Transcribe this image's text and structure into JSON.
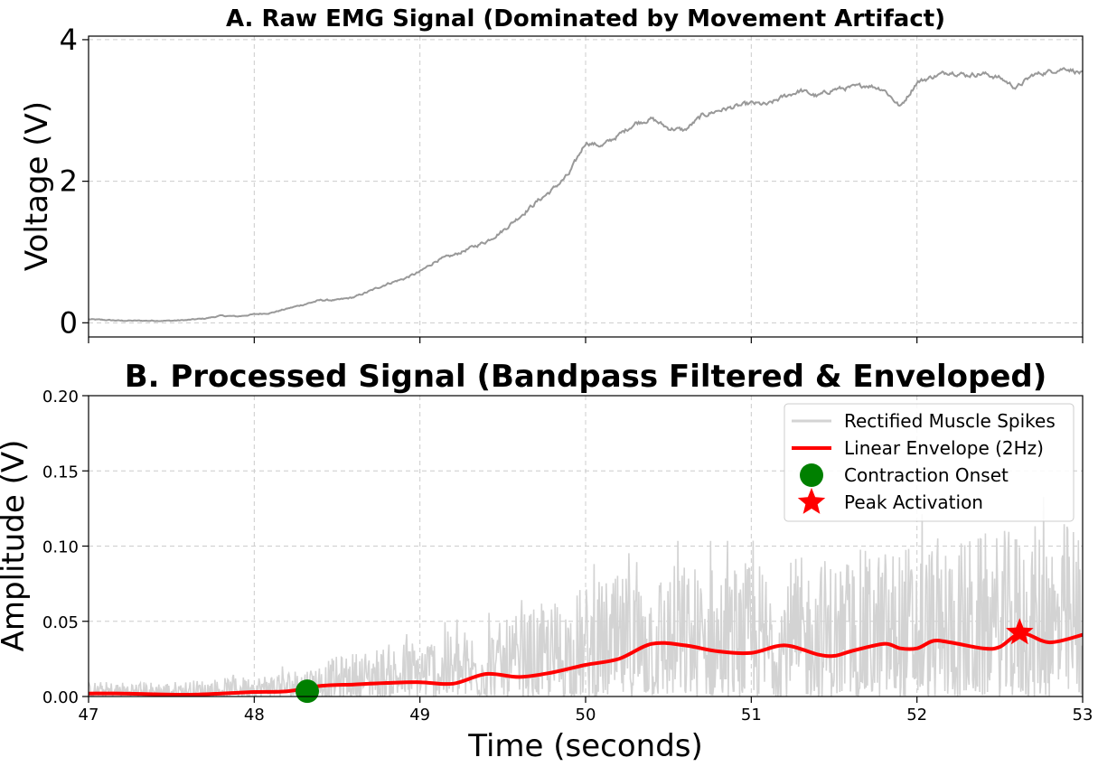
{
  "chart_data": [
    {
      "type": "line",
      "title": "A. Raw EMG Signal (Dominated by Movement Artifact)",
      "xlabel": "",
      "ylabel": "Voltage (V)",
      "xlim": [
        47,
        53
      ],
      "ylim": [
        -0.2,
        4.05
      ],
      "yticks": [
        0,
        2,
        4
      ],
      "ytick_labels": [
        "0",
        "2",
        "4"
      ],
      "xticks": [
        47,
        48,
        49,
        50,
        51,
        52,
        53
      ],
      "xtick_labels_visible": false,
      "grid": true,
      "series": [
        {
          "color": "#999999",
          "x": [
            47.0,
            47.1,
            47.2,
            47.3,
            47.4,
            47.5,
            47.6,
            47.7,
            47.8,
            47.9,
            48.0,
            48.1,
            48.2,
            48.3,
            48.4,
            48.5,
            48.6,
            48.7,
            48.8,
            48.9,
            49.0,
            49.1,
            49.2,
            49.3,
            49.4,
            49.5,
            49.6,
            49.7,
            49.8,
            49.9,
            50.0,
            50.1,
            50.2,
            50.3,
            50.4,
            50.5,
            50.6,
            50.7,
            50.8,
            50.9,
            51.0,
            51.1,
            51.2,
            51.3,
            51.4,
            51.5,
            51.6,
            51.7,
            51.8,
            51.9,
            52.0,
            52.1,
            52.2,
            52.3,
            52.4,
            52.5,
            52.6,
            52.7,
            52.8,
            52.9,
            53.0
          ],
          "y": [
            0.05,
            0.04,
            0.03,
            0.03,
            0.03,
            0.03,
            0.04,
            0.06,
            0.1,
            0.09,
            0.12,
            0.14,
            0.2,
            0.26,
            0.32,
            0.32,
            0.36,
            0.45,
            0.55,
            0.62,
            0.72,
            0.88,
            0.95,
            1.05,
            1.15,
            1.3,
            1.5,
            1.7,
            1.88,
            2.1,
            2.55,
            2.5,
            2.65,
            2.82,
            2.88,
            2.75,
            2.72,
            2.92,
            3.0,
            3.05,
            3.1,
            3.08,
            3.2,
            3.28,
            3.2,
            3.3,
            3.32,
            3.36,
            3.3,
            3.05,
            3.4,
            3.48,
            3.55,
            3.5,
            3.52,
            3.46,
            3.32,
            3.5,
            3.55,
            3.6,
            3.52
          ]
        }
      ]
    },
    {
      "type": "line",
      "title": "B. Processed Signal (Bandpass Filtered & Enveloped)",
      "xlabel": "Time (seconds)",
      "ylabel": "Amplitude (V)",
      "xlim": [
        47,
        53
      ],
      "ylim": [
        0,
        0.2
      ],
      "xticks": [
        47,
        48,
        49,
        50,
        51,
        52,
        53
      ],
      "xtick_labels": [
        "47",
        "48",
        "49",
        "50",
        "51",
        "52",
        "53"
      ],
      "yticks": [
        0,
        0.05,
        0.1,
        0.15,
        0.2
      ],
      "ytick_labels": [
        "0.00",
        "0.05",
        "0.10",
        "0.15",
        "0.20"
      ],
      "grid": true,
      "legend_position": "top-right",
      "series": [
        {
          "name": "Rectified Muscle Spikes",
          "color": "#d3d3d3",
          "amplitude_profile": {
            "x": [
              47.0,
              47.5,
              48.0,
              48.3,
              48.6,
              49.0,
              49.5,
              50.0,
              50.5,
              51.0,
              51.5,
              52.0,
              52.5,
              53.0
            ],
            "y_max": [
              0.01,
              0.01,
              0.014,
              0.02,
              0.03,
              0.04,
              0.05,
              0.075,
              0.09,
              0.09,
              0.095,
              0.105,
              0.11,
              0.12
            ]
          }
        },
        {
          "name": "Linear Envelope (2Hz)",
          "color": "#ff0000",
          "x": [
            47.0,
            47.2,
            47.4,
            47.6,
            47.8,
            48.0,
            48.2,
            48.4,
            48.6,
            48.8,
            49.0,
            49.2,
            49.4,
            49.6,
            49.8,
            50.0,
            50.2,
            50.4,
            50.6,
            50.8,
            51.0,
            51.2,
            51.4,
            51.5,
            51.6,
            51.8,
            51.9,
            52.0,
            52.1,
            52.2,
            52.4,
            52.5,
            52.63,
            52.8,
            53.0
          ],
          "y": [
            0.002,
            0.002,
            0.0015,
            0.0012,
            0.002,
            0.003,
            0.0035,
            0.007,
            0.008,
            0.009,
            0.0095,
            0.0085,
            0.015,
            0.013,
            0.016,
            0.021,
            0.025,
            0.035,
            0.034,
            0.03,
            0.029,
            0.034,
            0.028,
            0.027,
            0.03,
            0.035,
            0.032,
            0.032,
            0.037,
            0.036,
            0.032,
            0.033,
            0.042,
            0.036,
            0.041
          ]
        }
      ],
      "markers": [
        {
          "name": "Contraction Onset",
          "x": 48.32,
          "y": 0.0035,
          "shape": "circle",
          "color": "#008000"
        },
        {
          "name": "Peak Activation",
          "x": 52.62,
          "y": 0.0425,
          "shape": "star",
          "color": "#ff0000"
        }
      ]
    }
  ]
}
